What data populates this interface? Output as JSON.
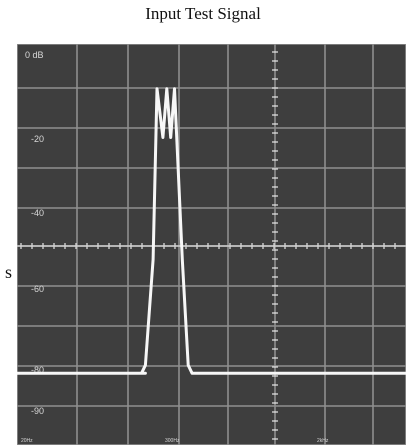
{
  "title": "Input Test Signal",
  "side_fragment": "s",
  "scope": {
    "y_labels": [
      "0 dB",
      "-20",
      "-40",
      "-60",
      "-80",
      "-90"
    ],
    "x_labels": [
      "20Hz",
      "300Hz",
      "2kHz"
    ],
    "colors": {
      "screen_bg": "#3e3e3e",
      "grid": "#8f8f8f",
      "trace": "#f7f7f7",
      "label": "#d8d8d8"
    }
  },
  "chart_data": {
    "type": "line",
    "title": "Input Test Signal",
    "xlabel": "",
    "ylabel": "",
    "y_tick_labels": [
      "0 dB",
      "-20",
      "-40",
      "-60",
      "-80",
      "-90"
    ],
    "x_tick_labels": [
      "20Hz",
      "300Hz",
      "2kHz"
    ],
    "series": [
      {
        "values_db": [
          -80,
          -80,
          -80,
          -80,
          -78,
          -52,
          -10,
          -22,
          -10,
          -22,
          -10,
          -52,
          -78,
          -80,
          -80,
          -80,
          -80,
          -80
        ],
        "x_positions": [
          0.0,
          0.2,
          0.33,
          0.32,
          0.33,
          0.35,
          0.36,
          0.375,
          0.385,
          0.395,
          0.405,
          0.425,
          0.44,
          0.45,
          0.6,
          0.8,
          0.9,
          1.0
        ]
      }
    ]
  }
}
